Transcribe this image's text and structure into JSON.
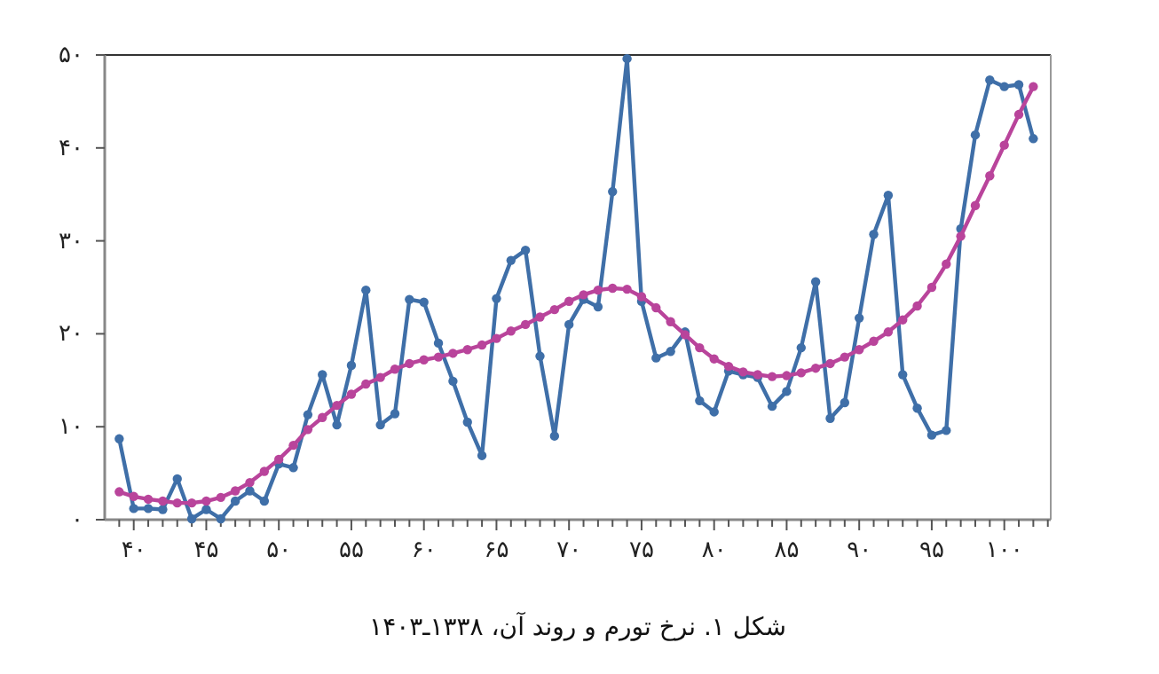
{
  "chart_data": {
    "type": "line",
    "annotations": [
      "شکل ۱. نرخ تورم و روند آن، ۱۳۳۸ـ۱۴۰۳"
    ],
    "x": [
      39,
      40,
      41,
      42,
      43,
      44,
      45,
      46,
      47,
      48,
      49,
      50,
      51,
      52,
      53,
      54,
      55,
      56,
      57,
      58,
      59,
      60,
      61,
      62,
      63,
      64,
      65,
      66,
      67,
      68,
      69,
      70,
      71,
      72,
      73,
      74,
      75,
      76,
      77,
      78,
      79,
      80,
      81,
      82,
      83,
      84,
      85,
      86,
      87,
      88,
      89,
      90,
      91,
      92,
      93,
      94,
      95,
      96,
      97,
      98,
      99,
      100,
      101,
      102
    ],
    "series": [
      {
        "color": "#3f6fa8",
        "values": [
          8.7,
          1.2,
          1.2,
          1.1,
          4.4,
          0.1,
          1.1,
          0.1,
          2.0,
          3.1,
          2.0,
          6.0,
          5.6,
          11.3,
          15.6,
          10.2,
          16.6,
          24.7,
          10.2,
          11.4,
          23.7,
          23.4,
          19.0,
          14.9,
          10.5,
          6.9,
          23.8,
          27.9,
          29.0,
          17.6,
          9.0,
          21.0,
          23.7,
          22.9,
          35.3,
          49.6,
          23.5,
          17.4,
          18.1,
          20.2,
          12.8,
          11.6,
          16.0,
          15.6,
          15.3,
          12.2,
          13.8,
          18.5,
          25.6,
          10.9,
          12.6,
          21.7,
          30.7,
          34.9,
          15.6,
          12.0,
          9.1,
          9.6,
          31.3,
          41.4,
          47.3,
          46.6,
          46.8,
          41.0
        ]
      },
      {
        "color": "#b9449b",
        "values": [
          3.0,
          2.5,
          2.2,
          2.0,
          1.8,
          1.8,
          2.0,
          2.4,
          3.1,
          4.0,
          5.2,
          6.5,
          8.0,
          9.7,
          11.0,
          12.3,
          13.5,
          14.6,
          15.3,
          16.2,
          16.8,
          17.2,
          17.5,
          17.9,
          18.3,
          18.8,
          19.5,
          20.3,
          21.0,
          21.8,
          22.6,
          23.5,
          24.2,
          24.7,
          24.9,
          24.8,
          24.0,
          22.8,
          21.3,
          19.9,
          18.5,
          17.3,
          16.5,
          15.9,
          15.6,
          15.4,
          15.5,
          15.8,
          16.3,
          16.8,
          17.5,
          18.3,
          19.2,
          20.2,
          21.5,
          23.0,
          25.0,
          27.5,
          30.5,
          33.8,
          37.0,
          40.3,
          43.6,
          46.6
        ]
      }
    ],
    "marker": "circle",
    "grid": false,
    "xlim": [
      38,
      103.2
    ],
    "xticks": [
      {
        "value": 39,
        "label": null
      },
      {
        "value": 40,
        "label": "۴۰"
      },
      {
        "value": 41,
        "label": null
      },
      {
        "value": 42,
        "label": null
      },
      {
        "value": 43,
        "label": null
      },
      {
        "value": 44,
        "label": null
      },
      {
        "value": 45,
        "label": "۴۵"
      },
      {
        "value": 46,
        "label": null
      },
      {
        "value": 47,
        "label": null
      },
      {
        "value": 48,
        "label": null
      },
      {
        "value": 49,
        "label": null
      },
      {
        "value": 50,
        "label": "۵۰"
      },
      {
        "value": 51,
        "label": null
      },
      {
        "value": 52,
        "label": null
      },
      {
        "value": 53,
        "label": null
      },
      {
        "value": 54,
        "label": null
      },
      {
        "value": 55,
        "label": "۵۵"
      },
      {
        "value": 56,
        "label": null
      },
      {
        "value": 57,
        "label": null
      },
      {
        "value": 58,
        "label": null
      },
      {
        "value": 59,
        "label": null
      },
      {
        "value": 60,
        "label": "۶۰"
      },
      {
        "value": 61,
        "label": null
      },
      {
        "value": 62,
        "label": null
      },
      {
        "value": 63,
        "label": null
      },
      {
        "value": 64,
        "label": null
      },
      {
        "value": 65,
        "label": "۶۵"
      },
      {
        "value": 66,
        "label": null
      },
      {
        "value": 67,
        "label": null
      },
      {
        "value": 68,
        "label": null
      },
      {
        "value": 69,
        "label": null
      },
      {
        "value": 70,
        "label": "۷۰"
      },
      {
        "value": 71,
        "label": null
      },
      {
        "value": 72,
        "label": null
      },
      {
        "value": 73,
        "label": null
      },
      {
        "value": 74,
        "label": null
      },
      {
        "value": 75,
        "label": "۷۵"
      },
      {
        "value": 76,
        "label": null
      },
      {
        "value": 77,
        "label": null
      },
      {
        "value": 78,
        "label": null
      },
      {
        "value": 79,
        "label": null
      },
      {
        "value": 80,
        "label": "۸۰"
      },
      {
        "value": 81,
        "label": null
      },
      {
        "value": 82,
        "label": null
      },
      {
        "value": 83,
        "label": null
      },
      {
        "value": 84,
        "label": null
      },
      {
        "value": 85,
        "label": "۸۵"
      },
      {
        "value": 86,
        "label": null
      },
      {
        "value": 87,
        "label": null
      },
      {
        "value": 88,
        "label": null
      },
      {
        "value": 89,
        "label": null
      },
      {
        "value": 90,
        "label": "۹۰"
      },
      {
        "value": 91,
        "label": null
      },
      {
        "value": 92,
        "label": null
      },
      {
        "value": 93,
        "label": null
      },
      {
        "value": 94,
        "label": null
      },
      {
        "value": 95,
        "label": "۹۵"
      },
      {
        "value": 96,
        "label": null
      },
      {
        "value": 97,
        "label": null
      },
      {
        "value": 98,
        "label": null
      },
      {
        "value": 99,
        "label": null
      },
      {
        "value": 100,
        "label": "۱۰۰"
      },
      {
        "value": 101,
        "label": null
      },
      {
        "value": 102,
        "label": null
      },
      {
        "value": 103,
        "label": null
      }
    ],
    "ylim": [
      0,
      50
    ],
    "yticks": [
      {
        "value": 0,
        "label": "۰"
      },
      {
        "value": 10,
        "label": "۱۰"
      },
      {
        "value": 20,
        "label": "۲۰"
      },
      {
        "value": 30,
        "label": "۳۰"
      },
      {
        "value": 40,
        "label": "۴۰"
      },
      {
        "value": 50,
        "label": "۵۰"
      }
    ]
  }
}
